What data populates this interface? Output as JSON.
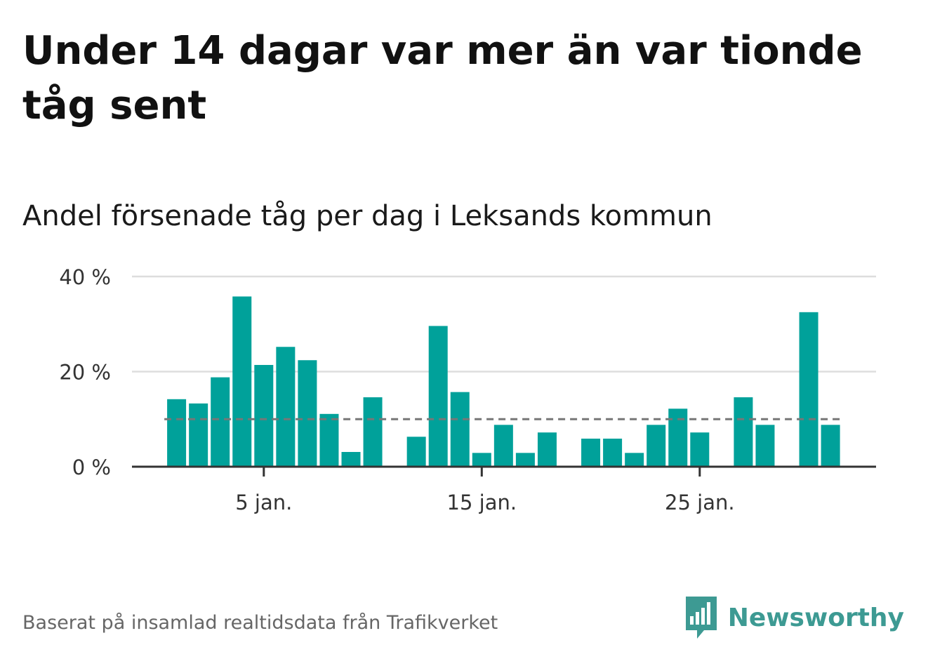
{
  "title": "Under 14 dagar var mer än var tionde tåg sent",
  "subtitle": "Andel försenade tåg per dag i Leksands kommun",
  "source": "Baserat på insamlad realtidsdata från Trafikverket",
  "brand": {
    "name": "Newsworthy",
    "icon": "newsworthy-logo-icon",
    "color": "#3d9a93"
  },
  "colors": {
    "bar": "#00a19a",
    "reference_line": "#777777",
    "grid": "#dddddd",
    "axis": "#333333"
  },
  "chart_data": {
    "type": "bar",
    "x": [
      1,
      2,
      3,
      4,
      5,
      6,
      7,
      8,
      9,
      10,
      11,
      12,
      13,
      14,
      15,
      16,
      17,
      18,
      19,
      20,
      21,
      22,
      23,
      24,
      25,
      26,
      27,
      28,
      29,
      30,
      31
    ],
    "values": [
      14.2,
      13.3,
      18.8,
      35.8,
      21.4,
      25.2,
      22.4,
      11.1,
      3.1,
      14.6,
      null,
      6.3,
      29.6,
      15.7,
      2.9,
      8.8,
      2.9,
      7.2,
      null,
      5.9,
      5.9,
      2.9,
      8.8,
      12.2,
      7.2,
      null,
      14.6,
      8.8,
      null,
      32.5,
      8.8
    ],
    "x_ticks": [
      {
        "x": 5,
        "label": "5 jan."
      },
      {
        "x": 15,
        "label": "15 jan."
      },
      {
        "x": 25,
        "label": "25 jan."
      }
    ],
    "y_ticks": [
      {
        "value": 0,
        "label": "0 %"
      },
      {
        "value": 20,
        "label": "20 %"
      },
      {
        "value": 40,
        "label": "40 %"
      }
    ],
    "ylim": [
      0,
      40
    ],
    "reference_line": 10,
    "grid": true
  }
}
